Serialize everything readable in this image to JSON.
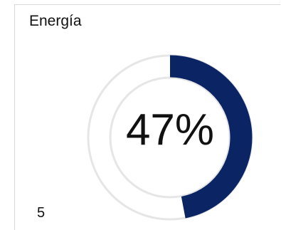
{
  "widget": {
    "title": "Energía",
    "gauge": {
      "value_label": "47%",
      "fraction": 0.47,
      "fill_color": "#0b2463",
      "track_color": "#e6e6e6",
      "inner_ring_color": "#e6e6e6"
    },
    "footer_value": "5"
  }
}
